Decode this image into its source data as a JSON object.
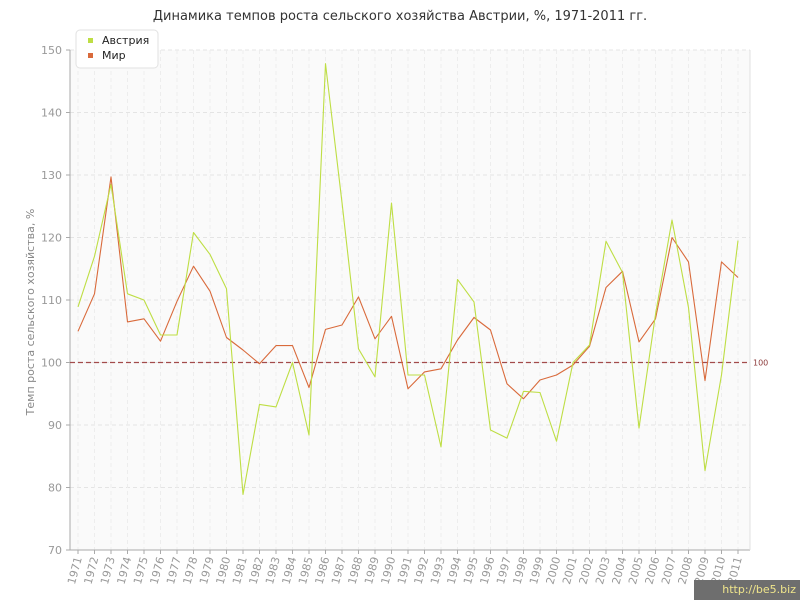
{
  "chart_data": {
    "type": "line",
    "title": "Динамика темпов роста сельского хозяйства Австрии, %, 1971-2011 гг.",
    "xlabel": "",
    "ylabel": "Темп роста сельского хозяйства, %",
    "ylim": [
      70,
      150
    ],
    "yticks": [
      70,
      80,
      90,
      100,
      110,
      120,
      130,
      140,
      150
    ],
    "categories": [
      "1971",
      "1972",
      "1973",
      "1974",
      "1975",
      "1976",
      "1977",
      "1978",
      "1979",
      "1980",
      "1981",
      "1982",
      "1983",
      "1984",
      "1985",
      "1986",
      "1987",
      "1988",
      "1989",
      "1990",
      "1991",
      "1992",
      "1993",
      "1994",
      "1995",
      "1996",
      "1997",
      "1998",
      "1999",
      "2000",
      "2001",
      "2002",
      "2003",
      "2004",
      "2005",
      "2006",
      "2007",
      "2008",
      "2009",
      "2010",
      "2011"
    ],
    "series": [
      {
        "name": "Австрия",
        "color": "#bede44",
        "values": [
          108.9,
          117.0,
          128.5,
          111.0,
          110.0,
          104.4,
          104.4,
          120.8,
          117.3,
          111.8,
          78.9,
          93.3,
          92.9,
          100.0,
          88.4,
          147.8,
          125.6,
          102.2,
          97.7,
          125.5,
          98.0,
          98.0,
          86.5,
          113.3,
          109.7,
          89.2,
          87.9,
          95.4,
          95.2,
          87.4,
          100.0,
          102.8,
          119.4,
          114.4,
          89.5,
          107.7,
          122.8,
          108.8,
          82.7,
          98.0,
          119.5
        ]
      },
      {
        "name": "Мир",
        "color": "#d96a3b",
        "values": [
          105.0,
          111.0,
          129.7,
          106.5,
          107.0,
          103.4,
          109.8,
          115.4,
          111.4,
          104.0,
          102.0,
          99.8,
          102.7,
          102.7,
          96.0,
          105.3,
          106.0,
          110.5,
          103.8,
          107.4,
          95.8,
          98.5,
          99.0,
          103.6,
          107.2,
          105.2,
          96.6,
          94.2,
          97.2,
          98.0,
          99.6,
          102.6,
          112.0,
          114.6,
          103.3,
          107.0,
          120.0,
          116.1,
          97.1,
          116.1,
          113.6
        ]
      }
    ],
    "reference_line": {
      "value": 100,
      "label": "100",
      "color": "#a34b4b"
    },
    "grid": true,
    "legend_position": "top-left"
  },
  "watermark": "http://be5.biz"
}
